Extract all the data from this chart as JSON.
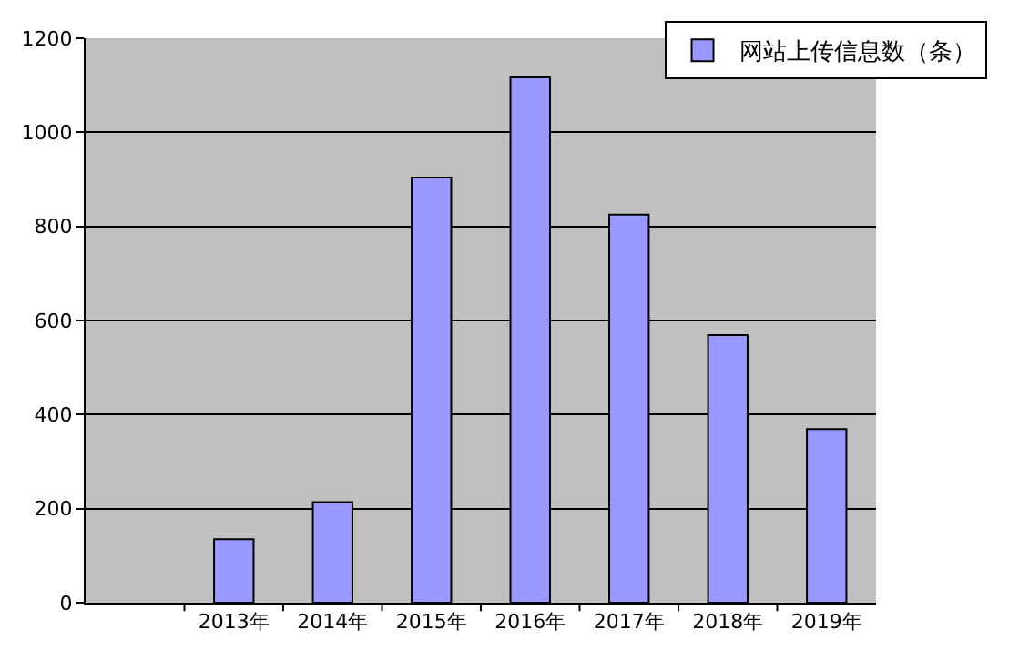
{
  "chart_data": {
    "type": "bar",
    "categories": [
      null,
      "2013年",
      "2014年",
      "2015年",
      "2016年",
      "2017年",
      "2018年",
      "2019年"
    ],
    "series": [
      {
        "name": "网站上传信息数（条）",
        "color": "#9999ff",
        "values": [
          null,
          135,
          214,
          904,
          1117,
          825,
          569,
          369
        ]
      }
    ],
    "ylim": [
      0,
      1200
    ],
    "yticks": [
      0,
      200,
      400,
      600,
      800,
      1000,
      1200
    ],
    "grid": "y",
    "legend": "top right"
  }
}
